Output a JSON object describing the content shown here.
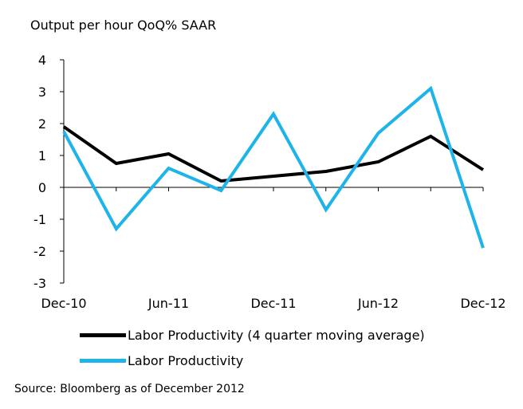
{
  "chart_data": {
    "type": "line",
    "title": "",
    "ylabel": "Output per hour QoQ% SAAR",
    "xlabel": "",
    "ylim": [
      -3,
      4
    ],
    "yticks": [
      "4",
      "3",
      "2",
      "1",
      "0",
      "-1",
      "-2",
      "-3"
    ],
    "x": [
      "Dec-10",
      "Mar-11",
      "Jun-11",
      "Sep-11",
      "Dec-11",
      "Mar-12",
      "Jun-12",
      "Sep-12",
      "Dec-12"
    ],
    "xtick_labels": [
      "Dec-10",
      "Jun-11",
      "Dec-11",
      "Jun-12",
      "Dec-12"
    ],
    "series": [
      {
        "name": "Labor Productivity (4 quarter moving average)",
        "color": "#000000",
        "values": [
          1.9,
          0.75,
          1.05,
          0.2,
          0.35,
          0.5,
          0.8,
          1.6,
          0.55
        ]
      },
      {
        "name": "Labor Productivity",
        "color": "#1EB4EA",
        "values": [
          1.75,
          -1.3,
          0.6,
          -0.1,
          2.3,
          -0.7,
          1.7,
          3.1,
          -1.9
        ]
      }
    ],
    "grid": false,
    "legend_position": "bottom"
  },
  "source": "Source: Bloomberg as of December 2012"
}
